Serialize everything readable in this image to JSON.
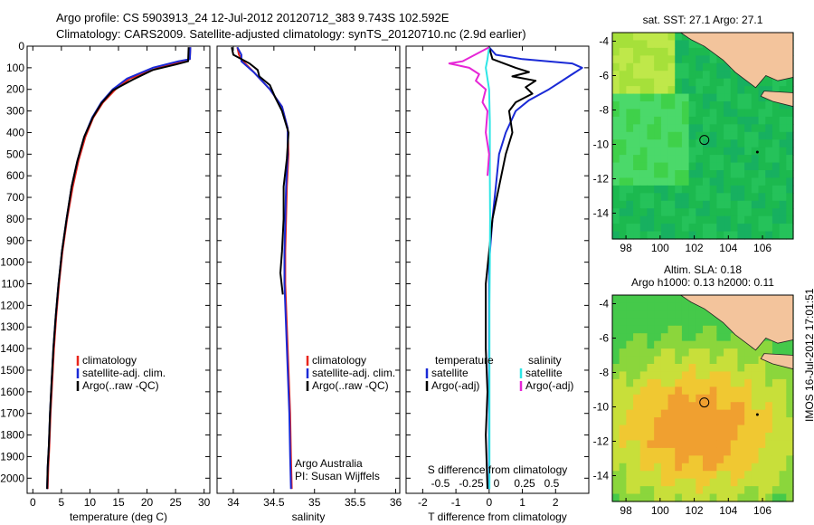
{
  "header": {
    "line1": "Argo profile: CS 5903913_24 12-Jul-2012 20120712_383 9.743S 102.592E",
    "line2": "Climatology: CARS2009. Satellite-adjusted climatology: synTS_20120710.nc (2.9d earlier)"
  },
  "colors": {
    "red": "#e8251a",
    "blue": "#1a2ad6",
    "black": "#000000",
    "cyan": "#2ee6e6",
    "magenta": "#e626d6",
    "land": "#f3c49c"
  },
  "chart_data": [
    {
      "type": "line",
      "xlabel": "temperature (deg C)",
      "xlim": [
        -1,
        31
      ],
      "xticks": [
        0,
        5,
        10,
        15,
        20,
        25,
        30
      ],
      "ylim": [
        0,
        2070
      ],
      "yticks": [
        0,
        100,
        200,
        300,
        400,
        500,
        600,
        700,
        800,
        900,
        1000,
        1100,
        1200,
        1300,
        1400,
        1500,
        1600,
        1700,
        1800,
        1900,
        2000
      ],
      "legend": [
        "climatology",
        "satellite-adj. clim.",
        "Argo(..raw -QC)"
      ],
      "series": [
        {
          "name": "climatology",
          "color": "red",
          "points": [
            [
              27.6,
              5
            ],
            [
              27.5,
              60
            ],
            [
              26,
              70
            ],
            [
              22,
              100
            ],
            [
              17,
              150
            ],
            [
              14.5,
              200
            ],
            [
              12.3,
              260
            ],
            [
              10.6,
              330
            ],
            [
              9.2,
              420
            ],
            [
              8,
              530
            ],
            [
              7,
              650
            ],
            [
              6,
              800
            ],
            [
              5.2,
              950
            ],
            [
              4.6,
              1100
            ],
            [
              4.1,
              1250
            ],
            [
              3.7,
              1400
            ],
            [
              3.4,
              1550
            ],
            [
              3.1,
              1700
            ],
            [
              2.9,
              1850
            ],
            [
              2.7,
              1950
            ],
            [
              2.6,
              2050
            ]
          ]
        },
        {
          "name": "satellite-adj. clim.",
          "color": "blue",
          "points": [
            [
              27.6,
              5
            ],
            [
              27.5,
              60
            ],
            [
              25.5,
              70
            ],
            [
              21,
              100
            ],
            [
              16.5,
              150
            ],
            [
              14,
              200
            ],
            [
              12,
              260
            ],
            [
              10.4,
              330
            ],
            [
              9,
              420
            ],
            [
              7.8,
              530
            ],
            [
              6.8,
              650
            ],
            [
              5.9,
              800
            ],
            [
              5.1,
              950
            ],
            [
              4.5,
              1100
            ],
            [
              4,
              1250
            ],
            [
              3.6,
              1400
            ],
            [
              3.3,
              1550
            ],
            [
              3,
              1700
            ],
            [
              2.8,
              1850
            ],
            [
              2.6,
              1950
            ],
            [
              2.5,
              2050
            ]
          ]
        },
        {
          "name": "Argo(..raw -QC)",
          "color": "black",
          "points": [
            [
              27.3,
              5
            ],
            [
              27.2,
              70
            ],
            [
              25,
              85
            ],
            [
              21,
              110
            ],
            [
              17.5,
              155
            ],
            [
              14,
              205
            ],
            [
              12,
              265
            ],
            [
              10.5,
              330
            ],
            [
              9,
              420
            ],
            [
              7.8,
              530
            ],
            [
              6.8,
              650
            ],
            [
              5.9,
              800
            ],
            [
              5.1,
              950
            ],
            [
              4.5,
              1100
            ],
            [
              4,
              1250
            ],
            [
              3.6,
              1400
            ],
            [
              3.3,
              1550
            ],
            [
              3,
              1700
            ],
            [
              2.8,
              1850
            ],
            [
              2.6,
              1950
            ],
            [
              2.5,
              2050
            ]
          ]
        }
      ]
    },
    {
      "type": "line",
      "xlabel": "salinity",
      "xlim": [
        33.8,
        36.05
      ],
      "xticks": [
        34,
        34.5,
        35,
        35.5,
        36
      ],
      "ylim": [
        0,
        2070
      ],
      "legend": [
        "climatology",
        "satellite-adj. clim.",
        "Argo(..raw -QC)"
      ],
      "annotation": [
        "Argo Australia",
        "PI: Susan Wijffels"
      ],
      "series": [
        {
          "name": "climatology",
          "color": "red",
          "points": [
            [
              34.05,
              5
            ],
            [
              34.07,
              40
            ],
            [
              34.12,
              70
            ],
            [
              34.25,
              120
            ],
            [
              34.45,
              200
            ],
            [
              34.6,
              280
            ],
            [
              34.67,
              380
            ],
            [
              34.68,
              500
            ],
            [
              34.66,
              650
            ],
            [
              34.65,
              800
            ],
            [
              34.64,
              950
            ],
            [
              34.64,
              1100
            ],
            [
              34.66,
              1300
            ],
            [
              34.68,
              1500
            ],
            [
              34.7,
              1700
            ],
            [
              34.71,
              1900
            ],
            [
              34.72,
              2050
            ]
          ]
        },
        {
          "name": "satellite-adj. clim.",
          "color": "blue",
          "points": [
            [
              34.05,
              5
            ],
            [
              34.1,
              40
            ],
            [
              34.1,
              70
            ],
            [
              34.25,
              120
            ],
            [
              34.45,
              200
            ],
            [
              34.6,
              280
            ],
            [
              34.67,
              380
            ],
            [
              34.67,
              500
            ],
            [
              34.65,
              650
            ],
            [
              34.64,
              800
            ],
            [
              34.63,
              950
            ],
            [
              34.63,
              1100
            ],
            [
              34.65,
              1300
            ],
            [
              34.67,
              1500
            ],
            [
              34.69,
              1700
            ],
            [
              34.7,
              1900
            ],
            [
              34.71,
              2050
            ]
          ]
        },
        {
          "name": "Argo(..raw -QC)",
          "color": "black",
          "points": [
            [
              33.98,
              5
            ],
            [
              34.0,
              40
            ],
            [
              34.2,
              80
            ],
            [
              34.3,
              110
            ],
            [
              34.32,
              140
            ],
            [
              34.45,
              180
            ],
            [
              34.52,
              240
            ],
            [
              34.6,
              300
            ],
            [
              34.68,
              400
            ],
            [
              34.66,
              520
            ],
            [
              34.62,
              650
            ],
            [
              34.62,
              800
            ],
            [
              34.6,
              950
            ],
            [
              34.58,
              1050
            ],
            [
              34.61,
              1150
            ]
          ]
        }
      ]
    },
    {
      "type": "line",
      "xlabel": "T difference from climatology",
      "xticks": [
        -2,
        -1,
        0,
        1,
        2
      ],
      "x2label": "S difference from climatology",
      "x2ticks": [
        -0.5,
        -0.25,
        0,
        0.25,
        0.5
      ],
      "xlim": [
        -2.5,
        3
      ],
      "ylim": [
        0,
        2070
      ],
      "legend_titles": [
        "temperature",
        "salinity"
      ],
      "legend": [
        "satellite",
        "Argo(-adj)",
        "satellite",
        "Argo(-adj)"
      ],
      "series": [
        {
          "name": "satellite",
          "color": "blue",
          "points": [
            [
              0,
              5
            ],
            [
              0.2,
              40
            ],
            [
              1,
              60
            ],
            [
              2.5,
              80
            ],
            [
              2.8,
              100
            ],
            [
              2.4,
              140
            ],
            [
              2.1,
              170
            ],
            [
              1.8,
              200
            ],
            [
              1.2,
              250
            ],
            [
              0.8,
              300
            ],
            [
              0.5,
              400
            ],
            [
              0.3,
              500
            ],
            [
              0.2,
              650
            ],
            [
              0.1,
              800
            ],
            [
              0,
              1000
            ],
            [
              0,
              1500
            ],
            [
              0,
              2050
            ]
          ]
        },
        {
          "name": "Argo(-adj)",
          "color": "black",
          "points": [
            [
              0,
              5
            ],
            [
              0.1,
              60
            ],
            [
              0.8,
              100
            ],
            [
              1.2,
              120
            ],
            [
              0.7,
              140
            ],
            [
              1.4,
              160
            ],
            [
              1.1,
              190
            ],
            [
              1.3,
              220
            ],
            [
              0.8,
              260
            ],
            [
              0.6,
              300
            ],
            [
              0.7,
              400
            ],
            [
              0.5,
              500
            ],
            [
              0.3,
              650
            ],
            [
              0.1,
              800
            ],
            [
              0,
              950
            ],
            [
              -0.1,
              1100
            ],
            [
              -0.1,
              1400
            ],
            [
              -0.05,
              1600
            ],
            [
              -0.1,
              1800
            ],
            [
              -0.05,
              2050
            ]
          ]
        },
        {
          "name": "satellite",
          "color": "cyan",
          "points": [
            [
              0,
              5
            ],
            [
              -0.05,
              60
            ],
            [
              -0.1,
              100
            ],
            [
              0,
              200
            ],
            [
              0.02,
              350
            ],
            [
              0.02,
              600
            ],
            [
              0.03,
              800
            ],
            [
              0.02,
              1000
            ],
            [
              0.01,
              1200
            ],
            [
              0.01,
              1500
            ],
            [
              0.01,
              1800
            ],
            [
              0.01,
              2050
            ]
          ]
        },
        {
          "name": "Argo(-adj)",
          "color": "magenta",
          "points": [
            [
              0,
              5
            ],
            [
              -0.8,
              70
            ],
            [
              -1.2,
              80
            ],
            [
              -0.6,
              100
            ],
            [
              -0.3,
              130
            ],
            [
              -0.4,
              160
            ],
            [
              -0.1,
              200
            ],
            [
              -0.2,
              260
            ],
            [
              -0.05,
              300
            ],
            [
              -0.1,
              400
            ],
            [
              0,
              500
            ],
            [
              -0.05,
              600
            ]
          ]
        }
      ]
    }
  ],
  "maps": [
    {
      "title": "sat. SST: 27.1  Argo: 27.1",
      "xticks": [
        "98",
        "100",
        "102",
        "104",
        "106"
      ],
      "yticks": [
        "-4",
        "-6",
        "-8",
        "-10",
        "-12",
        "-14"
      ]
    },
    {
      "title_line1": "Altim. SLA: 0.18",
      "title_line2": "Argo h1000: 0.13 h2000: 0.11",
      "xticks": [
        "98",
        "100",
        "102",
        "104",
        "106"
      ],
      "yticks": [
        "-4",
        "-6",
        "-8",
        "-10",
        "-12",
        "-14"
      ]
    }
  ],
  "footer": {
    "stamp": "IMOS 16-Jul-2012 17:01:51"
  }
}
